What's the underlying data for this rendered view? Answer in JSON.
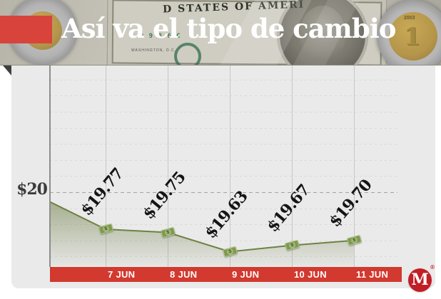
{
  "header": {
    "title": "Así va el tipo de cambio",
    "photo_texts": {
      "bill_top": "D STATES OF AMERI",
      "serial": "0 2 9 8 6 C",
      "bill_caption": "WASHINGTON, D.C.",
      "coin_year": "2003",
      "coin_denomination": "1"
    }
  },
  "chart_data": {
    "type": "line",
    "title": "Así va el tipo de cambio",
    "categories": [
      "7 JUN",
      "8 JUN",
      "9 JUN",
      "10 JUN",
      "11 JUN"
    ],
    "values": [
      19.77,
      19.75,
      19.63,
      19.67,
      19.7
    ],
    "point_labels": [
      "$19.77",
      "$19.75",
      "$19.63",
      "$19.67",
      "$19.70"
    ],
    "lead_in_value": 19.94,
    "y_reference": {
      "label": "$20",
      "value": 20
    },
    "ylim": [
      19.55,
      20.8
    ],
    "horizontal_grid_step": 0.1,
    "grid": "vertical solid per category, horizontal faint dashed every 0.10",
    "legend": "none",
    "marker_glyph": "$",
    "marker_style": "banknote"
  },
  "branding": {
    "logo_letter": "M",
    "registered_mark": "®"
  },
  "colors": {
    "accent_red_bar": "#d2392f",
    "header_block_red": "#d8443b",
    "logo_red": "#c21e25",
    "line_green": "#6d8243",
    "marker_green": "#7e9a4e",
    "area_green": "#6e7e46",
    "panel_gray": "#eaeaea",
    "value_label_black": "#141414"
  }
}
